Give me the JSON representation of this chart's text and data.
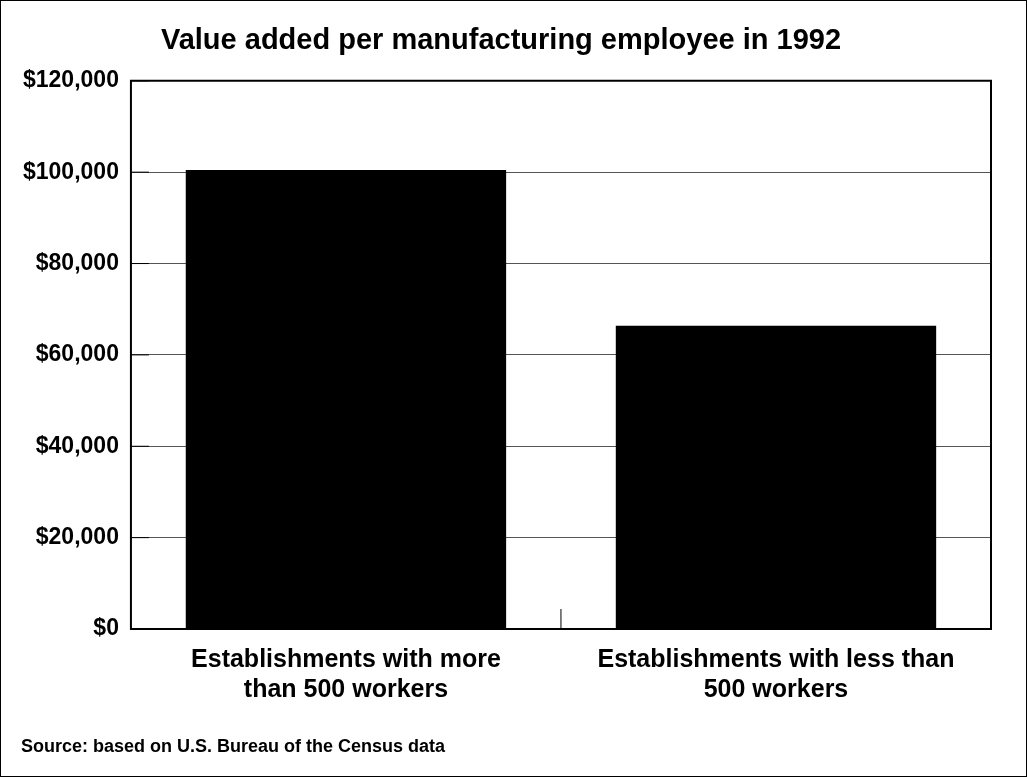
{
  "chart_data": {
    "type": "bar",
    "title": "Value added per manufacturing employee in 1992",
    "categories": [
      "Establishments with more than 500 workers",
      "Establishments with less than 500 workers"
    ],
    "values": [
      100500,
      66400
    ],
    "color": "#000000",
    "ylim": [
      0,
      120000
    ],
    "yticks": [
      {
        "value": 0,
        "label": "$0"
      },
      {
        "value": 20000,
        "label": "$20,000"
      },
      {
        "value": 40000,
        "label": "$40,000"
      },
      {
        "value": 60000,
        "label": "$60,000"
      },
      {
        "value": 80000,
        "label": "$80,000"
      },
      {
        "value": 100000,
        "label": "$100,000"
      },
      {
        "value": 120000,
        "label": "$120,000"
      }
    ],
    "grid": "y",
    "annotations": [
      "Source: based on U.S. Bureau of the Census data"
    ]
  }
}
